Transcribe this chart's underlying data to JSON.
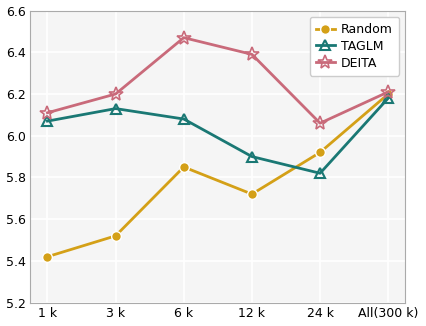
{
  "x_labels": [
    "1 k",
    "3 k",
    "6 k",
    "12 k",
    "24 k",
    "All(300 k)"
  ],
  "random": [
    5.42,
    5.52,
    5.85,
    5.72,
    5.92,
    6.2
  ],
  "taglm": [
    6.07,
    6.13,
    6.08,
    5.9,
    5.82,
    6.18
  ],
  "deita": [
    6.11,
    6.2,
    6.47,
    6.39,
    6.06,
    6.21
  ],
  "random_color": "#D4A017",
  "taglm_color": "#1A7874",
  "deita_color": "#C96A7A",
  "ylim": [
    5.2,
    6.6
  ],
  "yticks": [
    5.2,
    5.4,
    5.6,
    5.8,
    6.0,
    6.2,
    6.4,
    6.6
  ],
  "background_color": "#f5f5f5",
  "grid_color": "#ffffff",
  "linewidth": 2.0,
  "markersize_circle": 7,
  "markersize_triangle": 7,
  "markersize_star": 10,
  "tick_fontsize": 9,
  "legend_fontsize": 9
}
